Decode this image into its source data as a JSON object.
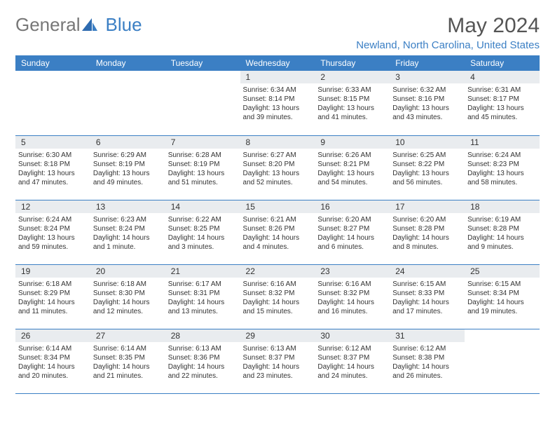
{
  "logo": {
    "part1": "General",
    "part2": "Blue",
    "accent": "#3b7fc4"
  },
  "title": "May 2024",
  "location": "Newland, North Carolina, United States",
  "colors": {
    "header_bg": "#3b7fc4",
    "header_text": "#ffffff",
    "daynum_bg": "#e9ecef",
    "row_divider": "#3b7fc4",
    "text": "#333333"
  },
  "day_headers": [
    "Sunday",
    "Monday",
    "Tuesday",
    "Wednesday",
    "Thursday",
    "Friday",
    "Saturday"
  ],
  "weeks": [
    [
      null,
      null,
      null,
      {
        "n": "1",
        "sunrise": "6:34 AM",
        "sunset": "8:14 PM",
        "daylight": "13 hours and 39 minutes."
      },
      {
        "n": "2",
        "sunrise": "6:33 AM",
        "sunset": "8:15 PM",
        "daylight": "13 hours and 41 minutes."
      },
      {
        "n": "3",
        "sunrise": "6:32 AM",
        "sunset": "8:16 PM",
        "daylight": "13 hours and 43 minutes."
      },
      {
        "n": "4",
        "sunrise": "6:31 AM",
        "sunset": "8:17 PM",
        "daylight": "13 hours and 45 minutes."
      }
    ],
    [
      {
        "n": "5",
        "sunrise": "6:30 AM",
        "sunset": "8:18 PM",
        "daylight": "13 hours and 47 minutes."
      },
      {
        "n": "6",
        "sunrise": "6:29 AM",
        "sunset": "8:19 PM",
        "daylight": "13 hours and 49 minutes."
      },
      {
        "n": "7",
        "sunrise": "6:28 AM",
        "sunset": "8:19 PM",
        "daylight": "13 hours and 51 minutes."
      },
      {
        "n": "8",
        "sunrise": "6:27 AM",
        "sunset": "8:20 PM",
        "daylight": "13 hours and 52 minutes."
      },
      {
        "n": "9",
        "sunrise": "6:26 AM",
        "sunset": "8:21 PM",
        "daylight": "13 hours and 54 minutes."
      },
      {
        "n": "10",
        "sunrise": "6:25 AM",
        "sunset": "8:22 PM",
        "daylight": "13 hours and 56 minutes."
      },
      {
        "n": "11",
        "sunrise": "6:24 AM",
        "sunset": "8:23 PM",
        "daylight": "13 hours and 58 minutes."
      }
    ],
    [
      {
        "n": "12",
        "sunrise": "6:24 AM",
        "sunset": "8:24 PM",
        "daylight": "13 hours and 59 minutes."
      },
      {
        "n": "13",
        "sunrise": "6:23 AM",
        "sunset": "8:24 PM",
        "daylight": "14 hours and 1 minute."
      },
      {
        "n": "14",
        "sunrise": "6:22 AM",
        "sunset": "8:25 PM",
        "daylight": "14 hours and 3 minutes."
      },
      {
        "n": "15",
        "sunrise": "6:21 AM",
        "sunset": "8:26 PM",
        "daylight": "14 hours and 4 minutes."
      },
      {
        "n": "16",
        "sunrise": "6:20 AM",
        "sunset": "8:27 PM",
        "daylight": "14 hours and 6 minutes."
      },
      {
        "n": "17",
        "sunrise": "6:20 AM",
        "sunset": "8:28 PM",
        "daylight": "14 hours and 8 minutes."
      },
      {
        "n": "18",
        "sunrise": "6:19 AM",
        "sunset": "8:28 PM",
        "daylight": "14 hours and 9 minutes."
      }
    ],
    [
      {
        "n": "19",
        "sunrise": "6:18 AM",
        "sunset": "8:29 PM",
        "daylight": "14 hours and 11 minutes."
      },
      {
        "n": "20",
        "sunrise": "6:18 AM",
        "sunset": "8:30 PM",
        "daylight": "14 hours and 12 minutes."
      },
      {
        "n": "21",
        "sunrise": "6:17 AM",
        "sunset": "8:31 PM",
        "daylight": "14 hours and 13 minutes."
      },
      {
        "n": "22",
        "sunrise": "6:16 AM",
        "sunset": "8:32 PM",
        "daylight": "14 hours and 15 minutes."
      },
      {
        "n": "23",
        "sunrise": "6:16 AM",
        "sunset": "8:32 PM",
        "daylight": "14 hours and 16 minutes."
      },
      {
        "n": "24",
        "sunrise": "6:15 AM",
        "sunset": "8:33 PM",
        "daylight": "14 hours and 17 minutes."
      },
      {
        "n": "25",
        "sunrise": "6:15 AM",
        "sunset": "8:34 PM",
        "daylight": "14 hours and 19 minutes."
      }
    ],
    [
      {
        "n": "26",
        "sunrise": "6:14 AM",
        "sunset": "8:34 PM",
        "daylight": "14 hours and 20 minutes."
      },
      {
        "n": "27",
        "sunrise": "6:14 AM",
        "sunset": "8:35 PM",
        "daylight": "14 hours and 21 minutes."
      },
      {
        "n": "28",
        "sunrise": "6:13 AM",
        "sunset": "8:36 PM",
        "daylight": "14 hours and 22 minutes."
      },
      {
        "n": "29",
        "sunrise": "6:13 AM",
        "sunset": "8:37 PM",
        "daylight": "14 hours and 23 minutes."
      },
      {
        "n": "30",
        "sunrise": "6:12 AM",
        "sunset": "8:37 PM",
        "daylight": "14 hours and 24 minutes."
      },
      {
        "n": "31",
        "sunrise": "6:12 AM",
        "sunset": "8:38 PM",
        "daylight": "14 hours and 26 minutes."
      },
      null
    ]
  ],
  "labels": {
    "sunrise": "Sunrise:",
    "sunset": "Sunset:",
    "daylight": "Daylight:"
  }
}
